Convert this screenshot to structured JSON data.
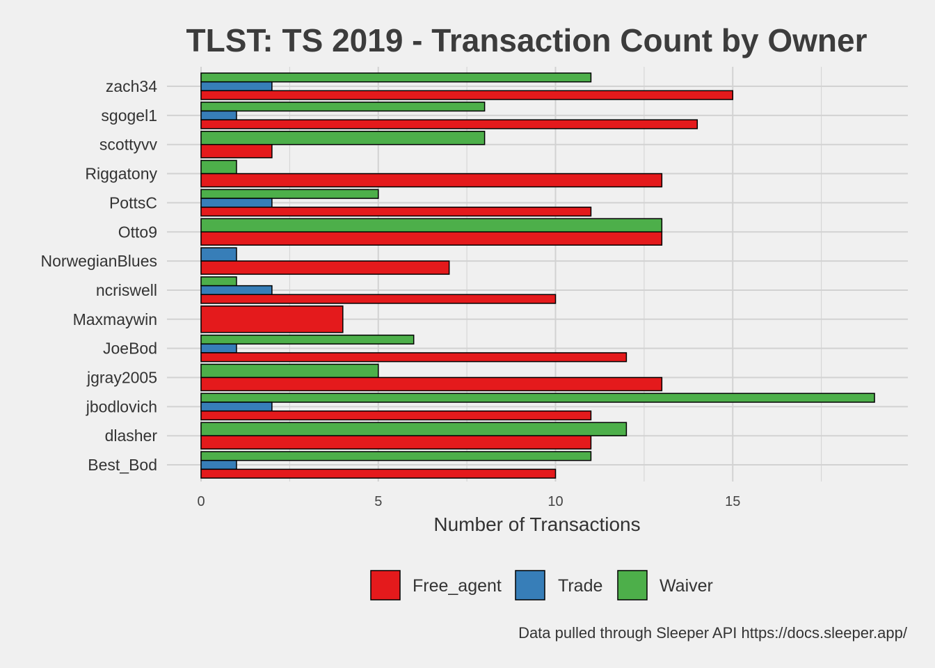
{
  "chart_data": {
    "type": "bar",
    "orientation": "horizontal",
    "title": "TLST: TS 2019 - Transaction Count by Owner",
    "xlabel": "Number of Transactions",
    "ylabel": "",
    "caption": "Data pulled through Sleeper API https://docs.sleeper.app/",
    "xlim": [
      0,
      20
    ],
    "xticks": [
      0,
      5,
      10,
      15
    ],
    "grid": true,
    "legend_position": "bottom",
    "categories": [
      "zach34",
      "sgogel1",
      "scottyvv",
      "Riggatony",
      "PottsC",
      "Otto9",
      "NorwegianBlues",
      "ncriswell",
      "Maxmaywin",
      "JoeBod",
      "jgray2005",
      "jbodlovich",
      "dlasher",
      "Best_Bod"
    ],
    "series": [
      {
        "name": "Free_agent",
        "color": "#e41a1c",
        "values": [
          15,
          14,
          2,
          13,
          11,
          13,
          7,
          10,
          4,
          12,
          13,
          11,
          11,
          10
        ]
      },
      {
        "name": "Trade",
        "color": "#377eb8",
        "values": [
          2,
          1,
          0,
          0,
          2,
          0,
          1,
          2,
          0,
          1,
          0,
          2,
          0,
          1
        ]
      },
      {
        "name": "Waiver",
        "color": "#4daf4a",
        "values": [
          11,
          8,
          8,
          1,
          5,
          13,
          0,
          1,
          0,
          6,
          5,
          19,
          12,
          11
        ]
      }
    ]
  }
}
